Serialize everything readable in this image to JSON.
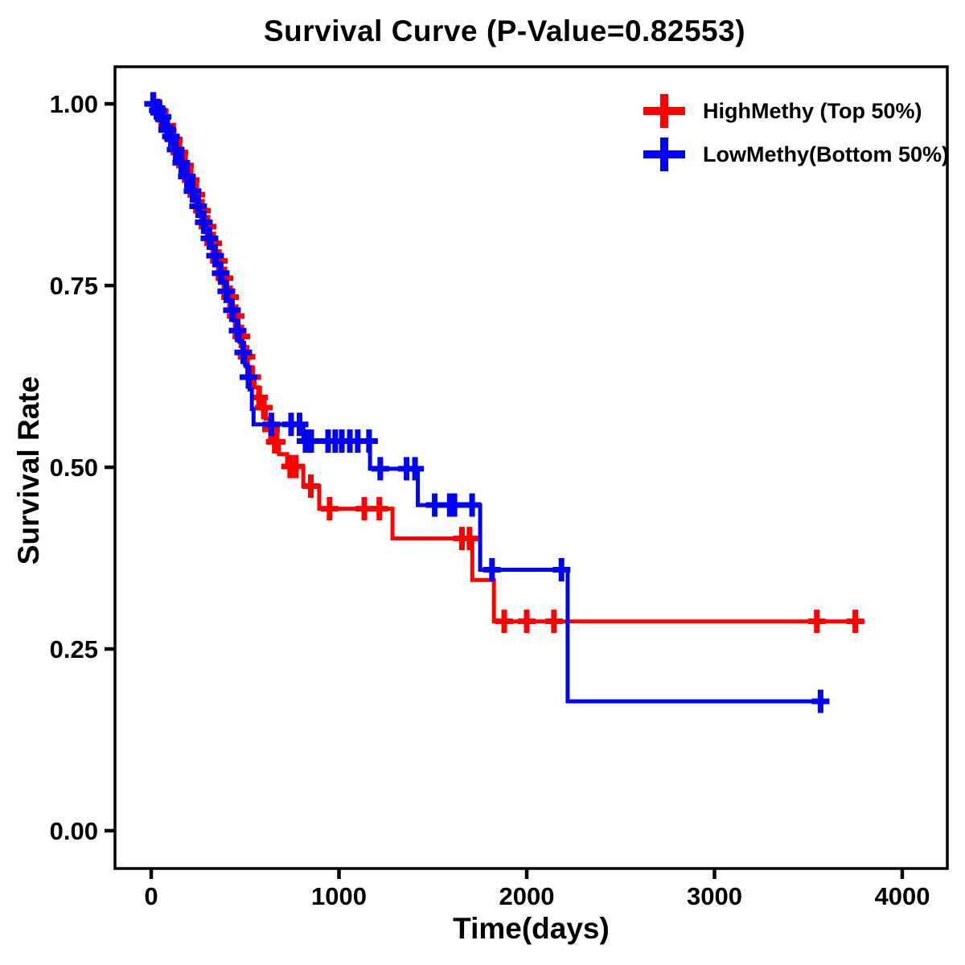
{
  "chart_data": {
    "type": "line",
    "subtype": "kaplan-meier-step",
    "title": "Survival Curve (P-Value=0.82553)",
    "p_value": "0.82553",
    "xlabel": "Time(days)",
    "ylabel": "Survival Rate",
    "grid": false,
    "legend_position": "top-right",
    "background_color": "#FFFFFF",
    "axis_color": "#000000",
    "xlim": [
      -193,
      4240
    ],
    "ylim": [
      -0.052,
      1.051
    ],
    "x_ticks": [
      {
        "label": "0",
        "value": 0
      },
      {
        "label": "1000",
        "value": 1000
      },
      {
        "label": "2000",
        "value": 2000
      },
      {
        "label": "3000",
        "value": 3000
      },
      {
        "label": "4000",
        "value": 4000
      }
    ],
    "y_ticks": [
      {
        "label": "0.00",
        "value": 0.0
      },
      {
        "label": "0.25",
        "value": 0.25
      },
      {
        "label": "0.50",
        "value": 0.5
      },
      {
        "label": "0.75",
        "value": 0.75
      },
      {
        "label": "1.00",
        "value": 1.0
      }
    ],
    "series": [
      {
        "name": "HighMethy (Top 50%)",
        "color": "#FF0000",
        "end_time": 3800,
        "steps": [
          [
            0,
            1.0
          ],
          [
            30,
            0.99
          ],
          [
            55,
            0.98
          ],
          [
            75,
            0.97
          ],
          [
            95,
            0.96
          ],
          [
            110,
            0.951
          ],
          [
            125,
            0.942
          ],
          [
            140,
            0.933
          ],
          [
            155,
            0.924
          ],
          [
            170,
            0.915
          ],
          [
            185,
            0.905
          ],
          [
            200,
            0.895
          ],
          [
            215,
            0.885
          ],
          [
            230,
            0.875
          ],
          [
            245,
            0.864
          ],
          [
            260,
            0.853
          ],
          [
            275,
            0.842
          ],
          [
            290,
            0.831
          ],
          [
            305,
            0.82
          ],
          [
            320,
            0.808
          ],
          [
            335,
            0.796
          ],
          [
            350,
            0.784
          ],
          [
            365,
            0.772
          ],
          [
            380,
            0.76
          ],
          [
            395,
            0.747
          ],
          [
            410,
            0.734
          ],
          [
            425,
            0.721
          ],
          [
            440,
            0.708
          ],
          [
            455,
            0.694
          ],
          [
            470,
            0.68
          ],
          [
            485,
            0.666
          ],
          [
            500,
            0.652
          ],
          [
            515,
            0.638
          ],
          [
            530,
            0.624
          ],
          [
            550,
            0.61
          ],
          [
            570,
            0.596
          ],
          [
            590,
            0.582
          ],
          [
            610,
            0.567
          ],
          [
            630,
            0.552
          ],
          [
            650,
            0.535
          ],
          [
            680,
            0.518
          ],
          [
            724,
            0.501
          ],
          [
            810,
            0.474
          ],
          [
            895,
            0.443
          ],
          [
            1285,
            0.402
          ],
          [
            1710,
            0.345
          ],
          [
            1825,
            0.288
          ]
        ],
        "censor_times": [
          12,
          45,
          85,
          120,
          150,
          180,
          210,
          240,
          270,
          300,
          330,
          360,
          390,
          420,
          450,
          480,
          508,
          538,
          575,
          600,
          638,
          658,
          668,
          740,
          770,
          850,
          950,
          1135,
          1215,
          1655,
          1695,
          1880,
          2000,
          2145,
          3545,
          3750
        ]
      },
      {
        "name": "LowMethy(Bottom 50%)",
        "color": "#0000FF",
        "end_time": 3610,
        "steps": [
          [
            0,
            1.0
          ],
          [
            25,
            0.991
          ],
          [
            45,
            0.982
          ],
          [
            65,
            0.973
          ],
          [
            80,
            0.964
          ],
          [
            95,
            0.955
          ],
          [
            110,
            0.946
          ],
          [
            125,
            0.937
          ],
          [
            140,
            0.928
          ],
          [
            155,
            0.919
          ],
          [
            170,
            0.91
          ],
          [
            185,
            0.9
          ],
          [
            200,
            0.89
          ],
          [
            215,
            0.88
          ],
          [
            230,
            0.87
          ],
          [
            245,
            0.859
          ],
          [
            260,
            0.848
          ],
          [
            275,
            0.837
          ],
          [
            290,
            0.826
          ],
          [
            305,
            0.815
          ],
          [
            320,
            0.803
          ],
          [
            335,
            0.791
          ],
          [
            350,
            0.779
          ],
          [
            365,
            0.767
          ],
          [
            380,
            0.755
          ],
          [
            395,
            0.742
          ],
          [
            410,
            0.729
          ],
          [
            425,
            0.716
          ],
          [
            440,
            0.702
          ],
          [
            455,
            0.688
          ],
          [
            470,
            0.673
          ],
          [
            485,
            0.658
          ],
          [
            500,
            0.641
          ],
          [
            512,
            0.624
          ],
          [
            524,
            0.607
          ],
          [
            536,
            0.58
          ],
          [
            545,
            0.559
          ],
          [
            810,
            0.536
          ],
          [
            1165,
            0.498
          ],
          [
            1420,
            0.448
          ],
          [
            1752,
            0.359
          ],
          [
            2218,
            0.178
          ]
        ],
        "censor_times": [
          10,
          35,
          60,
          85,
          105,
          130,
          160,
          190,
          220,
          250,
          280,
          310,
          340,
          370,
          400,
          430,
          460,
          490,
          518,
          640,
          745,
          790,
          822,
          852,
          942,
          980,
          1015,
          1058,
          1100,
          1160,
          1220,
          1360,
          1405,
          1510,
          1590,
          1615,
          1709,
          1815,
          2185,
          3565
        ]
      }
    ]
  }
}
